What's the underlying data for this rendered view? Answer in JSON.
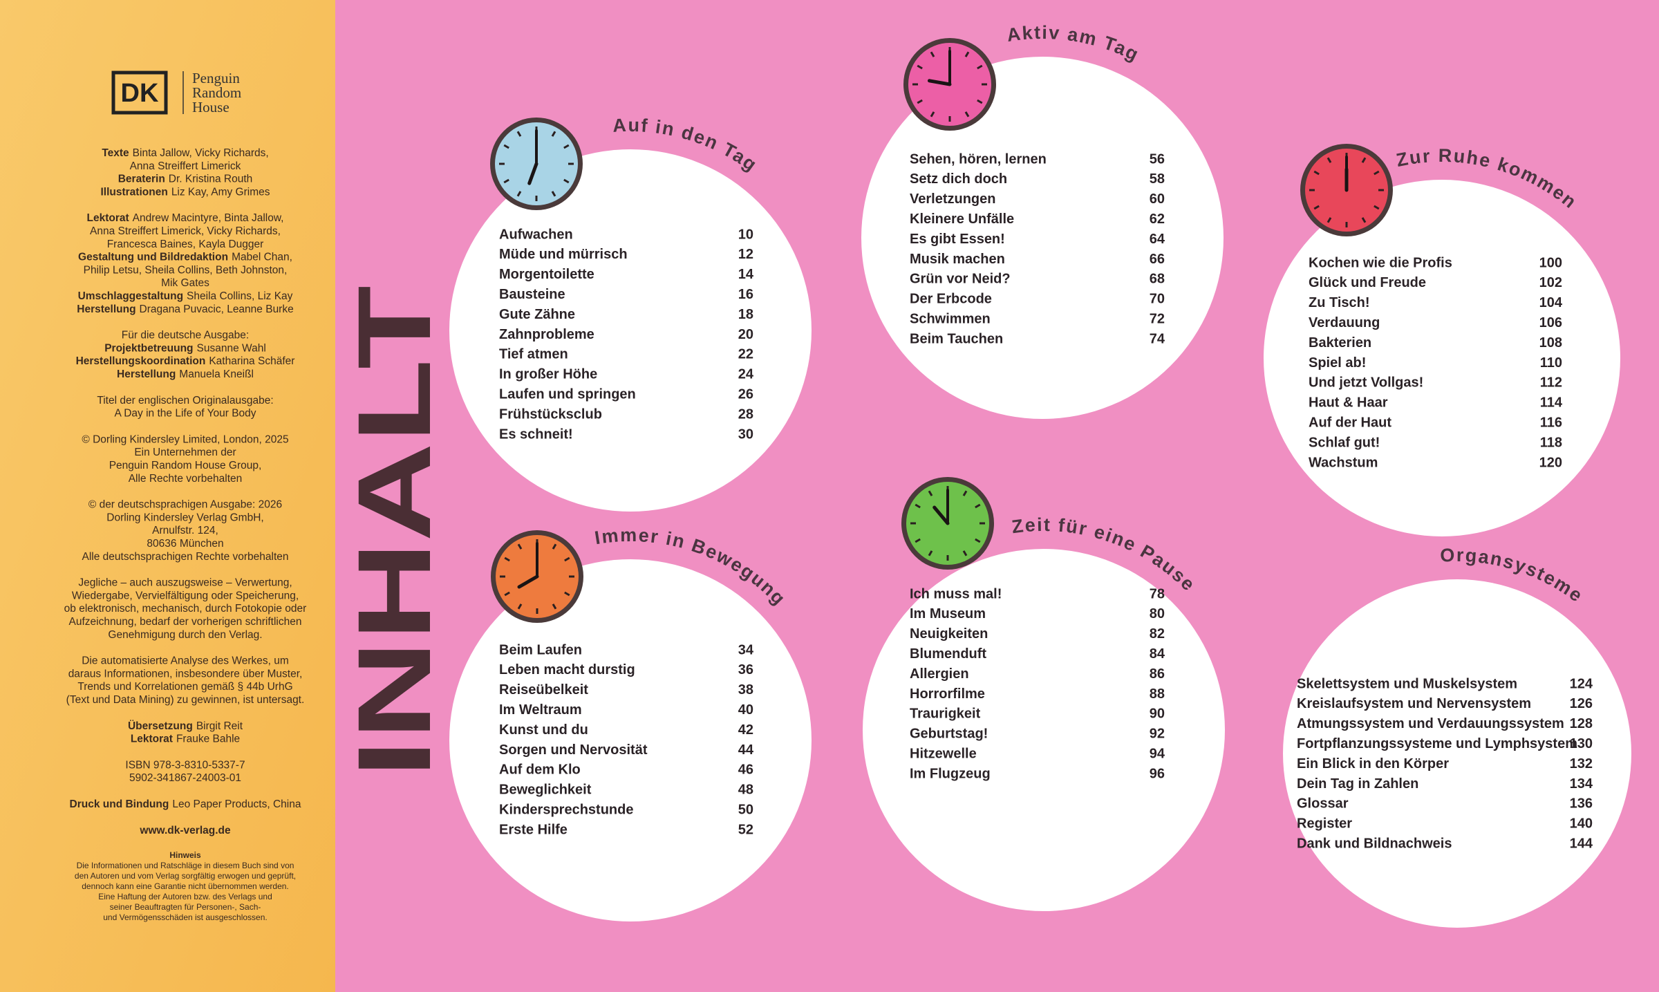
{
  "imprint": {
    "logo": {
      "mark": "DK",
      "lines": [
        "Penguin",
        "Random",
        "House"
      ]
    },
    "blocks": [
      [
        {
          "b": "Texte",
          "t": "Binta Jallow, Vicky Richards,"
        },
        {
          "t": "Anna Streiffert Limerick"
        },
        {
          "b": "Beraterin",
          "t": "Dr. Kristina Routh"
        },
        {
          "b": "Illustrationen",
          "t": "Liz Kay, Amy Grimes"
        }
      ],
      [
        {
          "b": "Lektorat",
          "t": "Andrew Macintyre, Binta Jallow,"
        },
        {
          "t": "Anna Streiffert Limerick, Vicky Richards,"
        },
        {
          "t": "Francesca Baines, Kayla Dugger"
        },
        {
          "b": "Gestaltung und Bildredaktion",
          "t": "Mabel Chan,"
        },
        {
          "t": "Philip Letsu, Sheila Collins, Beth Johnston,"
        },
        {
          "t": "Mik Gates"
        },
        {
          "b": "Umschlaggestaltung",
          "t": "Sheila Collins, Liz Kay"
        },
        {
          "b": "Herstellung",
          "t": "Dragana Puvacic, Leanne Burke"
        }
      ],
      [
        {
          "t": "Für die deutsche Ausgabe:"
        },
        {
          "b": "Projektbetreuung",
          "t": "Susanne Wahl"
        },
        {
          "b": "Herstellungskoordination",
          "t": "Katharina Schäfer"
        },
        {
          "b": "Herstellung",
          "t": "Manuela Kneißl"
        }
      ],
      [
        {
          "t": "Titel der englischen Originalausgabe:"
        },
        {
          "t": "A Day in the Life of Your Body"
        }
      ],
      [
        {
          "t": "© Dorling Kindersley Limited, London, 2025"
        },
        {
          "t": "Ein Unternehmen der"
        },
        {
          "t": "Penguin Random House Group,"
        },
        {
          "t": "Alle Rechte vorbehalten"
        }
      ],
      [
        {
          "t": "© der deutschsprachigen Ausgabe: 2026"
        },
        {
          "t": "Dorling Kindersley Verlag GmbH,"
        },
        {
          "t": "Arnulfstr. 124,"
        },
        {
          "t": "80636 München"
        },
        {
          "t": "Alle deutschsprachigen Rechte vorbehalten"
        }
      ],
      [
        {
          "t": "Jegliche – auch auszugsweise – Verwertung,"
        },
        {
          "t": "Wiedergabe, Vervielfältigung oder Speicherung,"
        },
        {
          "t": "ob elektronisch, mechanisch, durch Fotokopie oder"
        },
        {
          "t": "Aufzeichnung, bedarf der vorherigen schriftlichen"
        },
        {
          "t": "Genehmigung durch den Verlag."
        }
      ],
      [
        {
          "t": "Die automatisierte Analyse des Werkes, um"
        },
        {
          "t": "daraus Informationen, insbesondere über Muster,"
        },
        {
          "t": "Trends und Korrelationen gemäß § 44b UrhG"
        },
        {
          "t": "(Text und Data Mining) zu gewinnen, ist untersagt."
        }
      ],
      [
        {
          "b": "Übersetzung",
          "t": "Birgit Reit"
        },
        {
          "b": "Lektorat",
          "t": "Frauke Bahle"
        }
      ],
      [
        {
          "t": "ISBN 978-3-8310-5337-7"
        },
        {
          "t": "5902-341867-24003-01"
        }
      ],
      [
        {
          "b": "Druck und Bindung",
          "t": "Leo Paper Products, China"
        }
      ],
      [
        {
          "b": "www.dk-verlag.de"
        }
      ]
    ],
    "notice": {
      "title": "Hinweis",
      "lines": [
        "Die Informationen und Ratschläge in diesem Buch sind von",
        "den Autoren und vom Verlag sorgfältig erwogen und geprüft,",
        "dennoch kann eine Garantie nicht übernommen werden.",
        "Eine Haftung der Autoren bzw. des Verlags und",
        "seiner Beauftragten für Personen-, Sach-",
        "und Vermögensschäden ist ausgeschlossen."
      ]
    }
  },
  "title": "INHALT",
  "sections": [
    {
      "title": "Auf in den Tag",
      "entries": [
        {
          "label": "Aufwachen",
          "page": 10
        },
        {
          "label": "Müde und mürrisch",
          "page": 12
        },
        {
          "label": "Morgentoilette",
          "page": 14
        },
        {
          "label": "Bausteine",
          "page": 16
        },
        {
          "label": "Gute Zähne",
          "page": 18
        },
        {
          "label": "Zahnprobleme",
          "page": 20
        },
        {
          "label": "Tief atmen",
          "page": 22
        },
        {
          "label": "In großer Höhe",
          "page": 24
        },
        {
          "label": "Laufen und springen",
          "page": 26
        },
        {
          "label": "Frühstücksclub",
          "page": 28
        },
        {
          "label": "Es schneit!",
          "page": 30
        }
      ]
    },
    {
      "title": "Immer in Bewegung",
      "entries": [
        {
          "label": "Beim Laufen",
          "page": 34
        },
        {
          "label": "Leben macht durstig",
          "page": 36
        },
        {
          "label": "Reiseübelkeit",
          "page": 38
        },
        {
          "label": "Im Weltraum",
          "page": 40
        },
        {
          "label": "Kunst und du",
          "page": 42
        },
        {
          "label": "Sorgen und Nervosität",
          "page": 44
        },
        {
          "label": "Auf dem Klo",
          "page": 46
        },
        {
          "label": "Beweglichkeit",
          "page": 48
        },
        {
          "label": "Kindersprechstunde",
          "page": 50
        },
        {
          "label": "Erste Hilfe",
          "page": 52
        }
      ]
    },
    {
      "title": "Aktiv am Tag",
      "entries": [
        {
          "label": "Sehen, hören, lernen",
          "page": 56
        },
        {
          "label": "Setz dich doch",
          "page": 58
        },
        {
          "label": "Verletzungen",
          "page": 60
        },
        {
          "label": "Kleinere Unfälle",
          "page": 62
        },
        {
          "label": "Es gibt Essen!",
          "page": 64
        },
        {
          "label": "Musik machen",
          "page": 66
        },
        {
          "label": "Grün vor Neid?",
          "page": 68
        },
        {
          "label": "Der Erbcode",
          "page": 70
        },
        {
          "label": "Schwimmen",
          "page": 72
        },
        {
          "label": "Beim Tauchen",
          "page": 74
        }
      ]
    },
    {
      "title": "Zeit für eine Pause",
      "entries": [
        {
          "label": "Ich muss mal!",
          "page": 78
        },
        {
          "label": "Im Museum",
          "page": 80
        },
        {
          "label": "Neuigkeiten",
          "page": 82
        },
        {
          "label": "Blumenduft",
          "page": 84
        },
        {
          "label": "Allergien",
          "page": 86
        },
        {
          "label": "Horrorfilme",
          "page": 88
        },
        {
          "label": "Traurigkeit",
          "page": 90
        },
        {
          "label": "Geburtstag!",
          "page": 92
        },
        {
          "label": "Hitzewelle",
          "page": 94
        },
        {
          "label": "Im Flugzeug",
          "page": 96
        }
      ]
    },
    {
      "title": "Zur Ruhe kommen",
      "entries": [
        {
          "label": "Kochen wie die Profis",
          "page": 100
        },
        {
          "label": "Glück und Freude",
          "page": 102
        },
        {
          "label": "Zu Tisch!",
          "page": 104
        },
        {
          "label": "Verdauung",
          "page": 106
        },
        {
          "label": "Bakterien",
          "page": 108
        },
        {
          "label": "Spiel ab!",
          "page": 110
        },
        {
          "label": "Und jetzt Vollgas!",
          "page": 112
        },
        {
          "label": "Haut & Haar",
          "page": 114
        },
        {
          "label": "Auf der Haut",
          "page": 116
        },
        {
          "label": "Schlaf gut!",
          "page": 118
        },
        {
          "label": "Wachstum",
          "page": 120
        }
      ]
    },
    {
      "title": "Organsysteme",
      "entries": [
        {
          "label": "Skelettsystem und Muskelsystem",
          "page": 124
        },
        {
          "label": "Kreislaufsystem und Nervensystem",
          "page": 126
        },
        {
          "label": "Atmungssystem und Verdauungssystem",
          "page": 128
        },
        {
          "label": "Fortpflanzungssysteme und Lymphsystem",
          "page": 130
        },
        {
          "label": "Ein Blick in den Körper",
          "page": 132
        },
        {
          "label": "Dein Tag in Zahlen",
          "page": 134
        },
        {
          "label": "Glossar",
          "page": 136
        },
        {
          "label": "Register",
          "page": 140
        },
        {
          "label": "Dank und Bildnachweis",
          "page": 144
        }
      ]
    }
  ]
}
